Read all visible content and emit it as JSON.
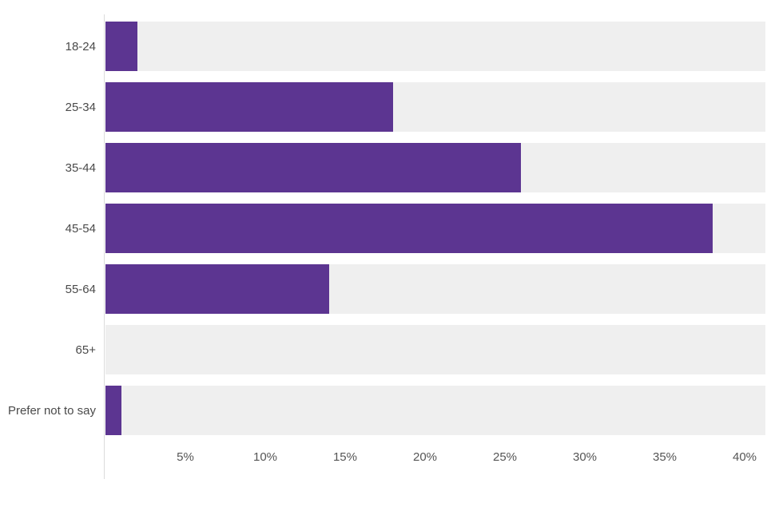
{
  "chart_data": {
    "type": "bar",
    "orientation": "horizontal",
    "title": "",
    "categories": [
      "18-24",
      "25-34",
      "35-44",
      "45-54",
      "55-64",
      "65+",
      "Prefer not to say"
    ],
    "values": [
      2,
      18,
      26,
      38,
      14,
      0,
      1
    ],
    "value_unit": "%",
    "x_tick_labels": [
      "5%",
      "10%",
      "15%",
      "20%",
      "25%",
      "30%",
      "35%",
      "40%"
    ],
    "x_tick_values": [
      5,
      10,
      15,
      20,
      25,
      30,
      35,
      40
    ],
    "xlim": [
      0,
      41.3
    ],
    "grid": false,
    "legend": "none",
    "colors": {
      "bar": "#5C3591",
      "track": "#EFEFEF",
      "axis_line": "#DCDCDC",
      "category_text": "#4A4A4A",
      "tick_text": "#555555",
      "background": "#FFFFFF"
    }
  }
}
